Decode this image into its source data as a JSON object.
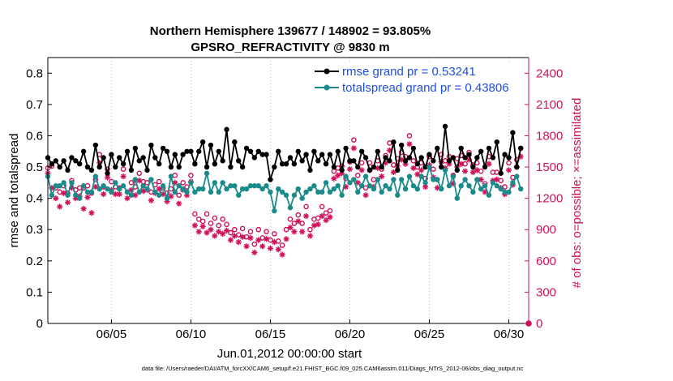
{
  "chart_data": {
    "type": "line",
    "title": "Northern Hemisphere 139677 / 148902 = 93.805%",
    "subtitle": "GPSRO_REFRACTIVITY @ 9830 m",
    "xlabel": "Jun.01,2012 00:00:00 start",
    "ylabel": "rmse and totalspread",
    "y2label": "# of obs: o=possible; ×=assimilated",
    "footer": "data file: /Users/raeder/DAI/ATM_forcXX/CAM6_setup/f.e21.FHIST_BGC.f09_025.CAM6assim.011/Diags_NTrS_2012-06/obs_diag_output.nc",
    "xlim": [
      1,
      31.25
    ],
    "ylim": [
      0,
      0.85
    ],
    "y2lim": [
      0,
      2550
    ],
    "x_ticks": [
      5,
      10,
      15,
      20,
      25,
      30
    ],
    "x_tick_labels": [
      "06/05",
      "06/10",
      "06/15",
      "06/20",
      "06/25",
      "06/30"
    ],
    "y_ticks": [
      0,
      0.1,
      0.2,
      0.3,
      0.4,
      0.5,
      0.6,
      0.7,
      0.8
    ],
    "y_tick_labels": [
      "0",
      "0.1",
      "0.2",
      "0.3",
      "0.4",
      "0.5",
      "0.6",
      "0.7",
      "0.8"
    ],
    "y2_ticks": [
      0,
      300,
      600,
      900,
      1200,
      1500,
      1800,
      2100,
      2400
    ],
    "y2_tick_labels": [
      "0",
      "300",
      "600",
      "900",
      "1200",
      "1500",
      "1800",
      "2100",
      "2400"
    ],
    "legend": {
      "position": "top-right",
      "entries": [
        "rmse grand pr = 0.53241",
        "totalspread grand pr = 0.43806"
      ]
    },
    "series": [
      {
        "name": "rmse",
        "color": "#000000",
        "x": [
          1.0,
          1.25,
          1.5,
          1.75,
          2.0,
          2.25,
          2.5,
          2.75,
          3.0,
          3.25,
          3.5,
          3.75,
          4.0,
          4.25,
          4.5,
          4.75,
          5.0,
          5.25,
          5.5,
          5.75,
          6.0,
          6.25,
          6.5,
          6.75,
          7.0,
          7.25,
          7.5,
          7.75,
          8.0,
          8.25,
          8.5,
          8.75,
          9.0,
          9.25,
          9.5,
          9.75,
          10.0,
          10.25,
          10.5,
          10.75,
          11.0,
          11.25,
          11.5,
          11.75,
          12.0,
          12.25,
          12.5,
          12.75,
          13.0,
          13.25,
          13.5,
          13.75,
          14.0,
          14.25,
          14.5,
          14.75,
          15.0,
          15.25,
          15.5,
          15.75,
          16.0,
          16.25,
          16.5,
          16.75,
          17.0,
          17.25,
          17.5,
          17.75,
          18.0,
          18.25,
          18.5,
          18.75,
          19.0,
          19.25,
          19.5,
          19.75,
          20.0,
          20.25,
          20.5,
          20.75,
          21.0,
          21.25,
          21.5,
          21.75,
          22.0,
          22.25,
          22.5,
          22.75,
          23.0,
          23.25,
          23.5,
          23.75,
          24.0,
          24.25,
          24.5,
          24.75,
          25.0,
          25.25,
          25.5,
          25.75,
          26.0,
          26.25,
          26.5,
          26.75,
          27.0,
          27.25,
          27.5,
          27.75,
          28.0,
          28.25,
          28.5,
          28.75,
          29.0,
          29.25,
          29.5,
          29.75,
          30.0,
          30.25,
          30.5,
          30.75
        ],
        "values": [
          0.53,
          0.51,
          0.52,
          0.5,
          0.52,
          0.49,
          0.53,
          0.52,
          0.51,
          0.55,
          0.5,
          0.49,
          0.57,
          0.5,
          0.53,
          0.48,
          0.54,
          0.5,
          0.53,
          0.51,
          0.55,
          0.49,
          0.56,
          0.52,
          0.53,
          0.49,
          0.57,
          0.53,
          0.51,
          0.56,
          0.55,
          0.5,
          0.54,
          0.5,
          0.54,
          0.55,
          0.55,
          0.51,
          0.55,
          0.58,
          0.5,
          0.57,
          0.51,
          0.55,
          0.52,
          0.62,
          0.5,
          0.58,
          0.52,
          0.5,
          0.56,
          0.55,
          0.53,
          0.55,
          0.54,
          0.54,
          0.46,
          0.5,
          0.55,
          0.51,
          0.51,
          0.53,
          0.51,
          0.55,
          0.52,
          0.54,
          0.49,
          0.55,
          0.52,
          0.54,
          0.51,
          0.54,
          0.5,
          0.55,
          0.49,
          0.56,
          0.52,
          0.52,
          0.5,
          0.55,
          0.53,
          0.49,
          0.5,
          0.55,
          0.5,
          0.53,
          0.52,
          0.58,
          0.49,
          0.57,
          0.52,
          0.53,
          0.56,
          0.51,
          0.53,
          0.5,
          0.54,
          0.52,
          0.56,
          0.5,
          0.63,
          0.52,
          0.53,
          0.49,
          0.56,
          0.53,
          0.54,
          0.5,
          0.53,
          0.55,
          0.5,
          0.56,
          0.53,
          0.58,
          0.48,
          0.54,
          0.53,
          0.61,
          0.5,
          0.56
        ]
      },
      {
        "name": "totalspread",
        "color": "#1a8a8a",
        "x": [
          1.0,
          1.25,
          1.5,
          1.75,
          2.0,
          2.25,
          2.5,
          2.75,
          3.0,
          3.25,
          3.5,
          3.75,
          4.0,
          4.25,
          4.5,
          4.75,
          5.0,
          5.25,
          5.5,
          5.75,
          6.0,
          6.25,
          6.5,
          6.75,
          7.0,
          7.25,
          7.5,
          7.75,
          8.0,
          8.25,
          8.5,
          8.75,
          9.0,
          9.25,
          9.5,
          9.75,
          10.0,
          10.25,
          10.5,
          10.75,
          11.0,
          11.25,
          11.5,
          11.75,
          12.0,
          12.25,
          12.5,
          12.75,
          13.0,
          13.25,
          13.5,
          13.75,
          14.0,
          14.25,
          14.5,
          14.75,
          15.0,
          15.25,
          15.5,
          15.75,
          16.0,
          16.25,
          16.5,
          16.75,
          17.0,
          17.25,
          17.5,
          17.75,
          18.0,
          18.25,
          18.5,
          18.75,
          19.0,
          19.25,
          19.5,
          19.75,
          20.0,
          20.25,
          20.5,
          20.75,
          21.0,
          21.25,
          21.5,
          21.75,
          22.0,
          22.25,
          22.5,
          22.75,
          23.0,
          23.25,
          23.5,
          23.75,
          24.0,
          24.25,
          24.5,
          24.75,
          25.0,
          25.25,
          25.5,
          25.75,
          26.0,
          26.25,
          26.5,
          26.75,
          27.0,
          27.25,
          27.5,
          27.75,
          28.0,
          28.25,
          28.5,
          28.75,
          29.0,
          29.25,
          29.5,
          29.75,
          30.0,
          30.25,
          30.5,
          30.75
        ],
        "values": [
          0.47,
          0.41,
          0.44,
          0.44,
          0.45,
          0.41,
          0.45,
          0.41,
          0.4,
          0.44,
          0.42,
          0.42,
          0.47,
          0.43,
          0.44,
          0.43,
          0.42,
          0.45,
          0.43,
          0.44,
          0.42,
          0.41,
          0.46,
          0.42,
          0.44,
          0.43,
          0.46,
          0.42,
          0.41,
          0.44,
          0.4,
          0.47,
          0.42,
          0.44,
          0.43,
          0.42,
          0.45,
          0.42,
          0.43,
          0.43,
          0.48,
          0.42,
          0.45,
          0.42,
          0.45,
          0.43,
          0.44,
          0.44,
          0.41,
          0.43,
          0.43,
          0.44,
          0.44,
          0.44,
          0.43,
          0.44,
          0.42,
          0.36,
          0.43,
          0.42,
          0.41,
          0.37,
          0.41,
          0.43,
          0.4,
          0.42,
          0.43,
          0.44,
          0.42,
          0.42,
          0.45,
          0.42,
          0.43,
          0.44,
          0.41,
          0.47,
          0.45,
          0.46,
          0.42,
          0.44,
          0.47,
          0.44,
          0.43,
          0.46,
          0.42,
          0.44,
          0.43,
          0.46,
          0.41,
          0.46,
          0.43,
          0.47,
          0.44,
          0.43,
          0.47,
          0.45,
          0.5,
          0.46,
          0.46,
          0.43,
          0.49,
          0.44,
          0.47,
          0.4,
          0.44,
          0.46,
          0.44,
          0.42,
          0.46,
          0.43,
          0.44,
          0.41,
          0.45,
          0.44,
          0.43,
          0.42,
          0.42,
          0.45,
          0.47,
          0.43
        ]
      },
      {
        "name": "possible obs",
        "axis": "right",
        "marker": "circle",
        "color": "#d0105a",
        "x": [
          1.0,
          1.25,
          1.5,
          1.75,
          2.0,
          2.25,
          2.5,
          2.75,
          3.0,
          3.25,
          3.5,
          3.75,
          4.0,
          4.25,
          4.5,
          4.75,
          5.0,
          5.25,
          5.5,
          5.75,
          6.0,
          6.25,
          6.5,
          6.75,
          7.0,
          7.25,
          7.5,
          7.75,
          8.0,
          8.25,
          8.5,
          8.75,
          9.0,
          9.25,
          9.5,
          9.75,
          10.0,
          10.25,
          10.5,
          10.75,
          11.0,
          11.25,
          11.5,
          11.75,
          12.0,
          12.25,
          12.5,
          12.75,
          13.0,
          13.25,
          13.5,
          13.75,
          14.0,
          14.25,
          14.5,
          14.75,
          15.0,
          15.25,
          15.5,
          15.75,
          16.0,
          16.25,
          16.5,
          16.75,
          17.0,
          17.25,
          17.5,
          17.75,
          18.0,
          18.25,
          18.5,
          18.75,
          19.0,
          19.25,
          19.5,
          19.75,
          20.0,
          20.25,
          20.5,
          20.75,
          21.0,
          21.25,
          21.5,
          21.75,
          22.0,
          22.25,
          22.5,
          22.75,
          23.0,
          23.25,
          23.5,
          23.75,
          24.0,
          24.25,
          24.5,
          24.75,
          25.0,
          25.25,
          25.5,
          25.75,
          26.0,
          26.25,
          26.5,
          26.75,
          27.0,
          27.25,
          27.5,
          27.75,
          28.0,
          28.25,
          28.5,
          28.75,
          29.0,
          29.25,
          29.5,
          29.75,
          30.0,
          30.25,
          30.5,
          30.75
        ],
        "values": [
          1490,
          1510,
          1300,
          1260,
          1320,
          1250,
          1370,
          1280,
          1300,
          1300,
          1320,
          1250,
          1380,
          1620,
          1310,
          1480,
          1360,
          1310,
          1300,
          1480,
          1260,
          1350,
          1310,
          1440,
          1360,
          1350,
          1260,
          1330,
          1360,
          1300,
          1250,
          1290,
          1420,
          1230,
          1350,
          1310,
          1420,
          1050,
          1000,
          980,
          1050,
          960,
          1010,
          940,
          1000,
          950,
          870,
          900,
          850,
          910,
          830,
          880,
          760,
          900,
          820,
          880,
          800,
          860,
          790,
          750,
          900,
          1000,
          960,
          1040,
          960,
          1120,
          900,
          1000,
          1010,
          1120,
          1060,
          1080,
          1460,
          1490,
          1510,
          1390,
          1550,
          1760,
          1420,
          1540,
          1300,
          1540,
          1380,
          1560,
          1480,
          1610,
          1730,
          1520,
          1580,
          1640,
          1600,
          1800,
          1560,
          1500,
          1540,
          1390,
          1600,
          1480,
          1380,
          1620,
          1560,
          1600,
          1420,
          1580,
          1610,
          1530,
          1640,
          1520,
          1540,
          1460,
          1340,
          1600,
          1450,
          1450,
          1370,
          1310,
          1540,
          1400,
          1570,
          1680
        ]
      },
      {
        "name": "assimilated obs",
        "axis": "right",
        "marker": "asterisk",
        "color": "#d0105a",
        "x": [
          1.0,
          1.25,
          1.5,
          1.75,
          2.0,
          2.25,
          2.5,
          2.75,
          3.0,
          3.25,
          3.5,
          3.75,
          4.0,
          4.25,
          4.5,
          4.75,
          5.0,
          5.25,
          5.5,
          5.75,
          6.0,
          6.25,
          6.5,
          6.75,
          7.0,
          7.25,
          7.5,
          7.75,
          8.0,
          8.25,
          8.5,
          8.75,
          9.0,
          9.25,
          9.5,
          9.75,
          10.0,
          10.25,
          10.5,
          10.75,
          11.0,
          11.25,
          11.5,
          11.75,
          12.0,
          12.25,
          12.5,
          12.75,
          13.0,
          13.25,
          13.5,
          13.75,
          14.0,
          14.25,
          14.5,
          14.75,
          15.0,
          15.25,
          15.5,
          15.75,
          16.0,
          16.25,
          16.5,
          16.75,
          17.0,
          17.25,
          17.5,
          17.75,
          18.0,
          18.25,
          18.5,
          18.75,
          19.0,
          19.25,
          19.5,
          19.75,
          20.0,
          20.25,
          20.5,
          20.75,
          21.0,
          21.25,
          21.5,
          21.75,
          22.0,
          22.25,
          22.5,
          22.75,
          23.0,
          23.25,
          23.5,
          23.75,
          24.0,
          24.25,
          24.5,
          24.75,
          25.0,
          25.25,
          25.5,
          25.75,
          26.0,
          26.25,
          26.5,
          26.75,
          27.0,
          27.25,
          27.5,
          27.75,
          28.0,
          28.25,
          28.5,
          28.75,
          29.0,
          29.25,
          29.5,
          29.75,
          30.0,
          30.25,
          30.5,
          30.75
        ],
        "values": [
          1440,
          1300,
          1200,
          1120,
          1250,
          1160,
          1300,
          1200,
          1220,
          1100,
          1210,
          1060,
          1310,
          1540,
          1240,
          1400,
          1280,
          1240,
          1240,
          1410,
          1200,
          1280,
          1230,
          1370,
          1270,
          1280,
          1180,
          1250,
          1290,
          1240,
          1170,
          1220,
          1350,
          1150,
          1280,
          1230,
          1360,
          940,
          880,
          930,
          870,
          900,
          840,
          880,
          860,
          890,
          800,
          840,
          780,
          830,
          740,
          820,
          680,
          800,
          740,
          810,
          720,
          780,
          710,
          660,
          810,
          920,
          880,
          980,
          880,
          1030,
          840,
          940,
          950,
          1030,
          990,
          1020,
          1390,
          1420,
          1440,
          1310,
          1480,
          1680,
          1350,
          1470,
          1230,
          1470,
          1310,
          1490,
          1410,
          1540,
          1660,
          1450,
          1510,
          1570,
          1530,
          1720,
          1490,
          1430,
          1470,
          1310,
          1520,
          1400,
          1300,
          1550,
          1490,
          1530,
          1340,
          1500,
          1530,
          1460,
          1570,
          1450,
          1470,
          1380,
          1260,
          1530,
          1370,
          1380,
          1300,
          1240,
          1470,
          1330,
          1500,
          1600
        ]
      }
    ]
  }
}
